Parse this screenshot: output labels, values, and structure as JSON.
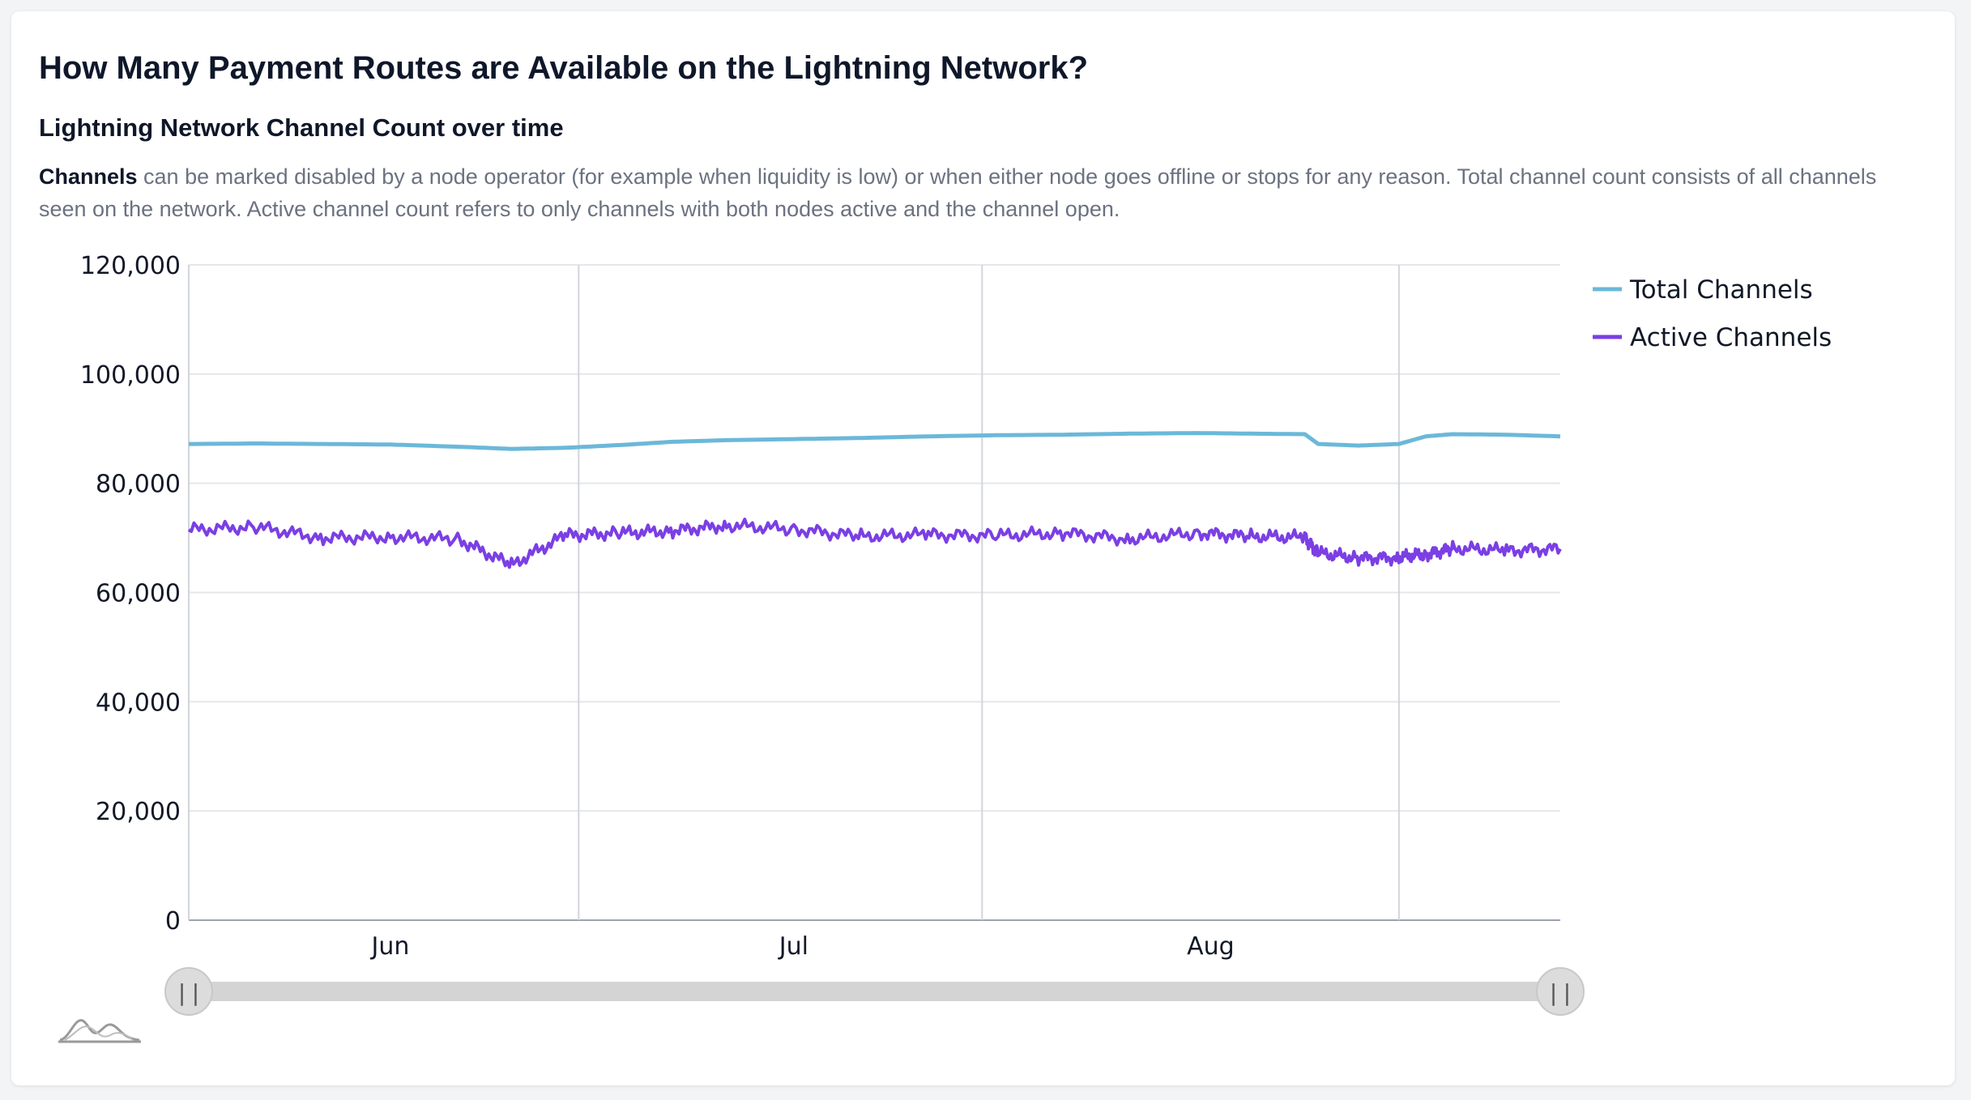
{
  "page": {
    "title": "How Many Payment Routes are Available on the Lightning Network?",
    "subtitle": "Lightning Network Channel Count over time",
    "description_lead": "Channels",
    "description_rest": " can be marked disabled by a node operator (for example when liquidity is low) or when either node goes offline or stops for any reason. Total channel count consists of all channels seen on the network. Active channel count refers to only channels with both nodes active and the channel open."
  },
  "icons": {
    "range_handle_glyph": "||",
    "minimap": "minimap-icon"
  },
  "chart_data": {
    "type": "line",
    "title": "",
    "xlabel": "",
    "ylabel": "",
    "ylim": [
      0,
      120000
    ],
    "yticks": [
      0,
      20000,
      40000,
      60000,
      80000,
      100000,
      120000
    ],
    "ytick_labels": [
      "0",
      "20,000",
      "40,000",
      "60,000",
      "80,000",
      "100,000",
      "120,000"
    ],
    "xlim": [
      "2023-05-17",
      "2023-08-27"
    ],
    "xtick_labels": [
      {
        "date": "2023-06-01",
        "label": "Jun"
      },
      {
        "date": "2023-07-01",
        "label": "Jul"
      },
      {
        "date": "2023-08-01",
        "label": "Aug"
      }
    ],
    "xgrid_dates": [
      "2023-06-15",
      "2023-07-15",
      "2023-08-15"
    ],
    "grid": true,
    "legend_position": "top-right",
    "x": [
      "2023-05-17",
      "2023-05-22",
      "2023-05-27",
      "2023-06-01",
      "2023-06-06",
      "2023-06-10",
      "2023-06-14",
      "2023-06-18",
      "2023-06-22",
      "2023-06-26",
      "2023-07-01",
      "2023-07-06",
      "2023-07-11",
      "2023-07-16",
      "2023-07-21",
      "2023-07-26",
      "2023-07-31",
      "2023-08-04",
      "2023-08-08",
      "2023-08-09",
      "2023-08-12",
      "2023-08-15",
      "2023-08-17",
      "2023-08-19",
      "2023-08-23",
      "2023-08-27"
    ],
    "series": [
      {
        "name": "Total Channels",
        "color": "#6bb8d9",
        "values": [
          87200,
          87300,
          87200,
          87100,
          86700,
          86300,
          86500,
          87000,
          87600,
          87900,
          88100,
          88300,
          88600,
          88800,
          88900,
          89100,
          89200,
          89100,
          89000,
          87200,
          86900,
          87200,
          88600,
          89000,
          88900,
          88600
        ]
      },
      {
        "name": "Active Channels",
        "color": "#7b3fe4",
        "values": [
          71500,
          72000,
          70000,
          70200,
          69800,
          65000,
          70500,
          70900,
          71300,
          72300,
          71600,
          70300,
          70600,
          70400,
          70900,
          69800,
          70900,
          70300,
          70100,
          67200,
          66300,
          66400,
          67000,
          68100,
          67700,
          68000
        ]
      }
    ]
  }
}
